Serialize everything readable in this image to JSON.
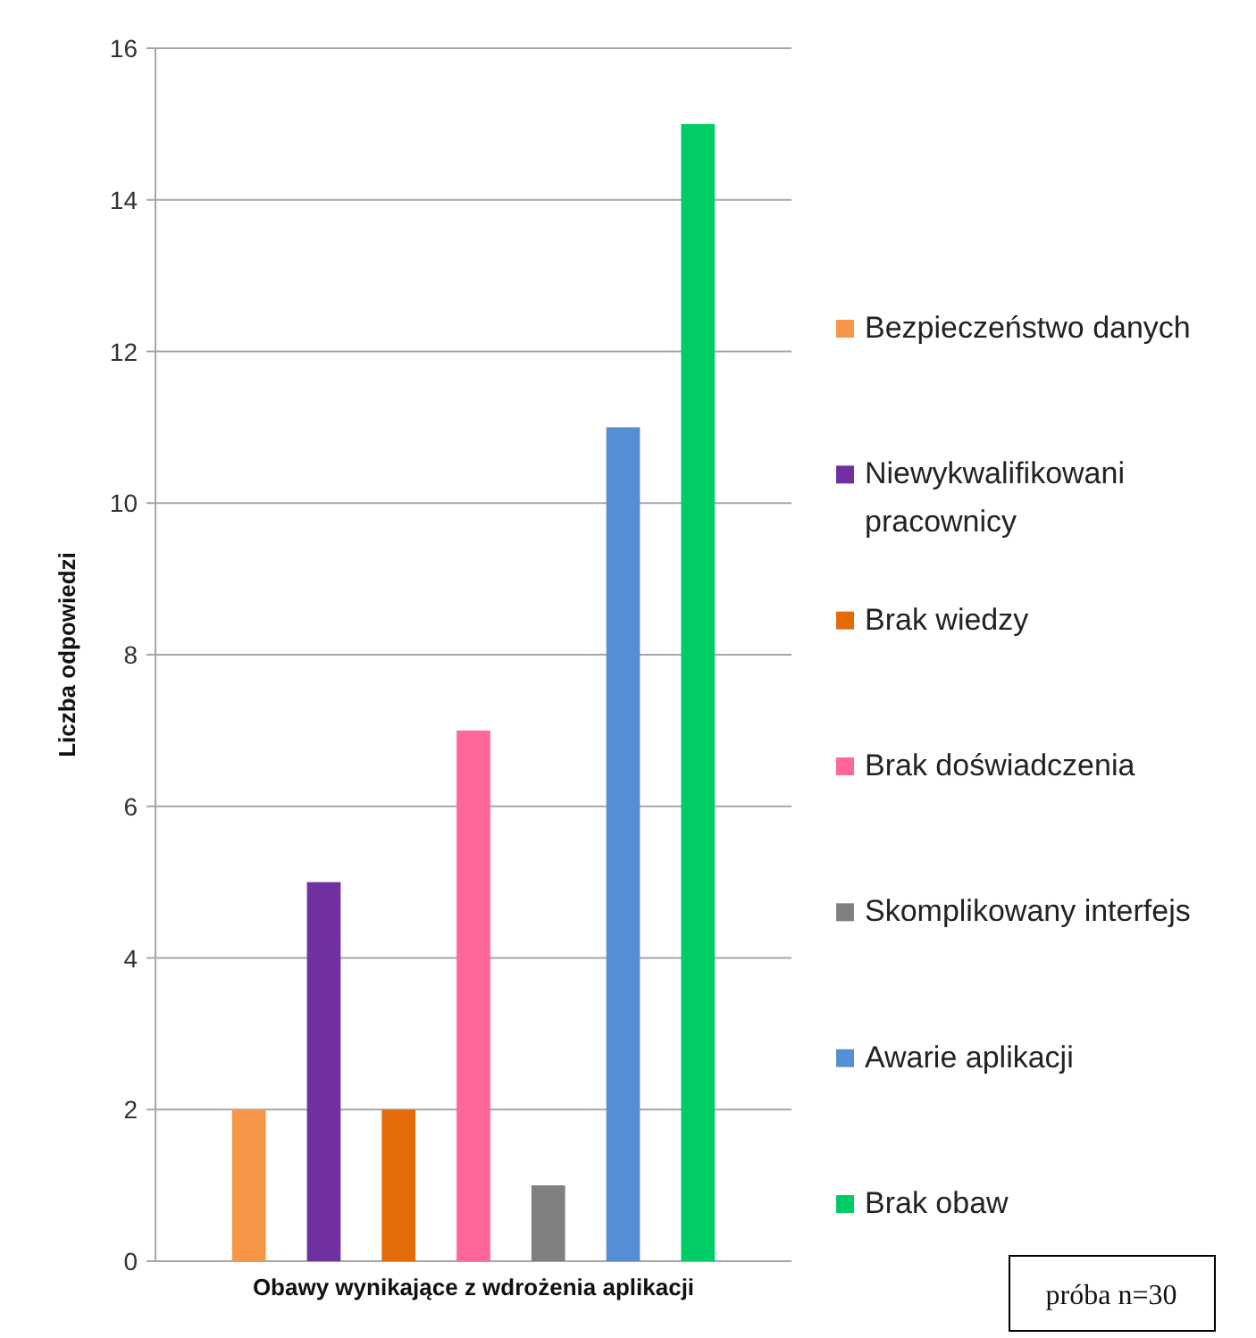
{
  "chart_data": {
    "type": "bar",
    "xlabel": "Obawy wynikające z wdrożenia aplikacji",
    "ylabel": "Liczba odpowiedzi",
    "categories": [
      null
    ],
    "series": [
      {
        "name": "Bezpieczeństwo danych",
        "color": "#f79646",
        "values": [
          2
        ]
      },
      {
        "name": "Niewykwalifikowani pracownicy",
        "color": "#7030a0",
        "values": [
          5
        ]
      },
      {
        "name": "Brak wiedzy",
        "color": "#e36c09",
        "values": [
          2
        ]
      },
      {
        "name": "Brak doświadczenia",
        "color": "#ff6699",
        "values": [
          7
        ]
      },
      {
        "name": "Skomplikowany interfejs",
        "color": "#808080",
        "values": [
          1
        ]
      },
      {
        "name": "Awarie aplikacji",
        "color": "#558ed5",
        "values": [
          11
        ]
      },
      {
        "name": "Brak obaw",
        "color": "#00cc66",
        "values": [
          15
        ]
      }
    ],
    "ylim": [
      0,
      16
    ],
    "yticks": [
      0,
      2,
      4,
      6,
      8,
      10,
      12,
      14,
      16
    ],
    "grid": "y",
    "legend": "right",
    "annotations": [
      "próba n=30"
    ]
  }
}
